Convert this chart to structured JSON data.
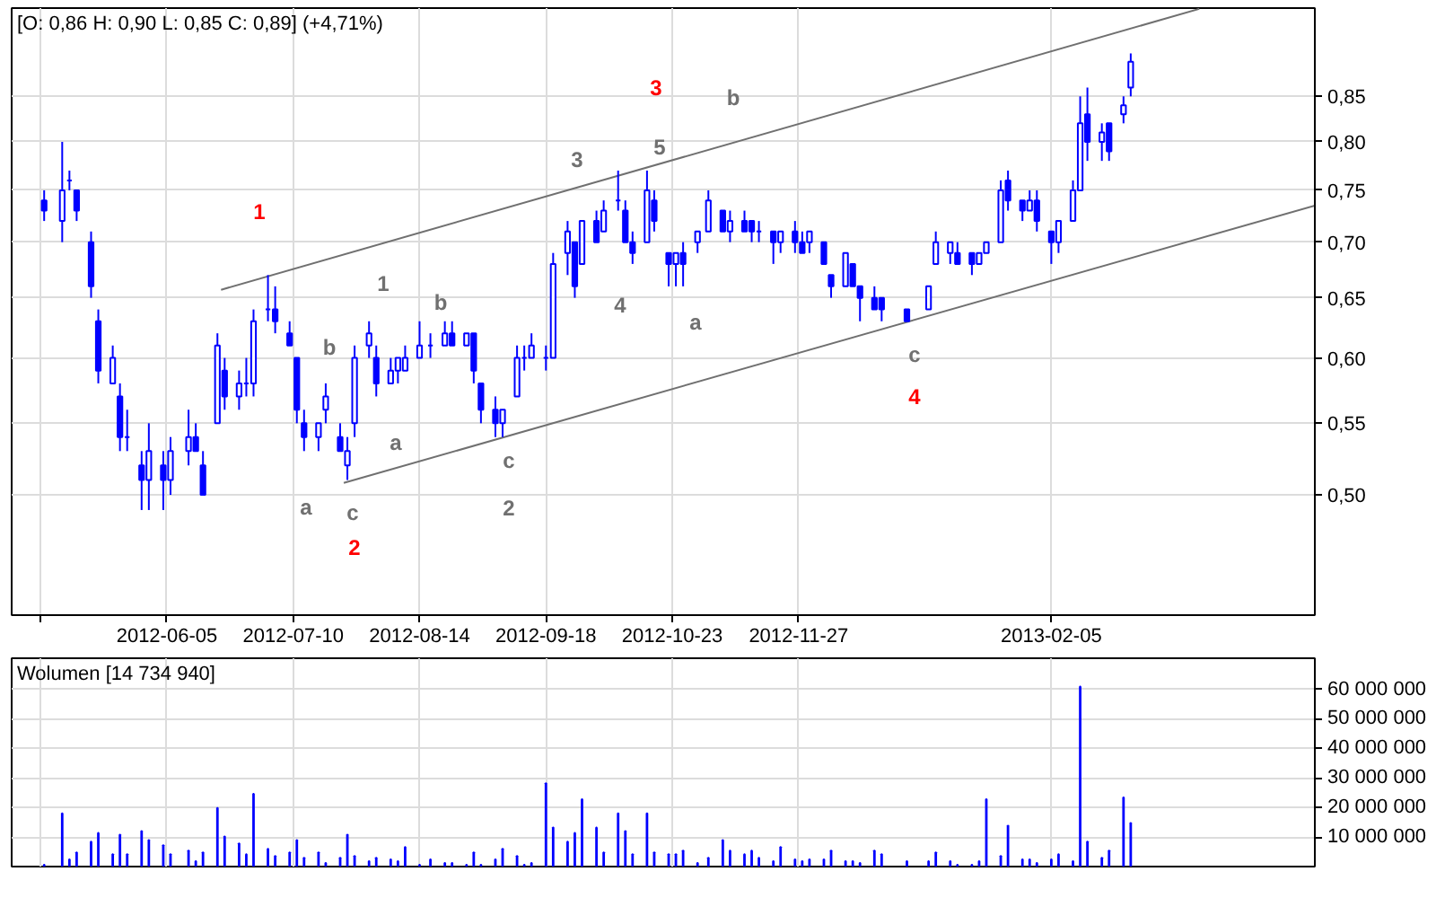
{
  "chart_data": [
    {
      "type": "candlestick",
      "title": "[O: 0,86 H: 0,90 L: 0,85 C: 0,89] (+4,71%)",
      "color": "#0000ff",
      "x": [
        "2012-05-02",
        "2012-05-07",
        "2012-05-09",
        "2012-05-11",
        "2012-05-15",
        "2012-05-17",
        "2012-05-21",
        "2012-05-23",
        "2012-05-25",
        "2012-05-29",
        "2012-05-31",
        "2012-06-04",
        "2012-06-06",
        "2012-06-11",
        "2012-06-13",
        "2012-06-15",
        "2012-06-19",
        "2012-06-21",
        "2012-06-25",
        "2012-06-27",
        "2012-06-29",
        "2012-07-03",
        "2012-07-05",
        "2012-07-09",
        "2012-07-11",
        "2012-07-13",
        "2012-07-17",
        "2012-07-19",
        "2012-07-23",
        "2012-07-25",
        "2012-07-27",
        "2012-07-31",
        "2012-08-02",
        "2012-08-06",
        "2012-08-08",
        "2012-08-10",
        "2012-08-14",
        "2012-08-17",
        "2012-08-21",
        "2012-08-23",
        "2012-08-27",
        "2012-08-29",
        "2012-08-31",
        "2012-09-04",
        "2012-09-06",
        "2012-09-10",
        "2012-09-12",
        "2012-09-14",
        "2012-09-18",
        "2012-09-20",
        "2012-09-24",
        "2012-09-26",
        "2012-09-28",
        "2012-10-02",
        "2012-10-04",
        "2012-10-08",
        "2012-10-10",
        "2012-10-12",
        "2012-10-16",
        "2012-10-18",
        "2012-10-22",
        "2012-10-24",
        "2012-10-26",
        "2012-10-30",
        "2012-11-02",
        "2012-11-06",
        "2012-11-08",
        "2012-11-12",
        "2012-11-14",
        "2012-11-16",
        "2012-11-20",
        "2012-11-22",
        "2012-11-26",
        "2012-11-28",
        "2012-11-30",
        "2012-12-04",
        "2012-12-06",
        "2012-12-10",
        "2012-12-12",
        "2012-12-14",
        "2012-12-18",
        "2012-12-20",
        "2012-12-27",
        "2013-01-02",
        "2013-01-04",
        "2013-01-08",
        "2013-01-10",
        "2013-01-14",
        "2013-01-16",
        "2013-01-18",
        "2013-01-22",
        "2013-01-24",
        "2013-01-28",
        "2013-01-30",
        "2013-02-01",
        "2013-02-05",
        "2013-02-07",
        "2013-02-11",
        "2013-02-13",
        "2013-02-15",
        "2013-02-19",
        "2013-02-21",
        "2013-02-25",
        "2013-02-27"
      ],
      "ohlc": [
        [
          0.74,
          0.75,
          0.72,
          0.73
        ],
        [
          0.72,
          0.8,
          0.7,
          0.75
        ],
        [
          0.76,
          0.77,
          0.75,
          0.76
        ],
        [
          0.75,
          0.75,
          0.72,
          0.73
        ],
        [
          0.7,
          0.71,
          0.65,
          0.66
        ],
        [
          0.63,
          0.64,
          0.58,
          0.59
        ],
        [
          0.58,
          0.61,
          0.58,
          0.6
        ],
        [
          0.57,
          0.58,
          0.53,
          0.54
        ],
        [
          0.54,
          0.56,
          0.53,
          0.54
        ],
        [
          0.52,
          0.53,
          0.49,
          0.51
        ],
        [
          0.51,
          0.55,
          0.49,
          0.53
        ],
        [
          0.52,
          0.53,
          0.49,
          0.51
        ],
        [
          0.51,
          0.54,
          0.5,
          0.53
        ],
        [
          0.53,
          0.56,
          0.52,
          0.54
        ],
        [
          0.54,
          0.55,
          0.53,
          0.53
        ],
        [
          0.52,
          0.53,
          0.5,
          0.5
        ],
        [
          0.55,
          0.62,
          0.55,
          0.61
        ],
        [
          0.59,
          0.6,
          0.56,
          0.57
        ],
        [
          0.57,
          0.59,
          0.56,
          0.58
        ],
        [
          0.58,
          0.6,
          0.57,
          0.58
        ],
        [
          0.58,
          0.64,
          0.57,
          0.63
        ],
        [
          0.64,
          0.67,
          0.63,
          0.64
        ],
        [
          0.64,
          0.66,
          0.62,
          0.63
        ],
        [
          0.62,
          0.63,
          0.61,
          0.61
        ],
        [
          0.6,
          0.6,
          0.55,
          0.56
        ],
        [
          0.55,
          0.56,
          0.53,
          0.54
        ],
        [
          0.54,
          0.55,
          0.53,
          0.55
        ],
        [
          0.56,
          0.58,
          0.55,
          0.57
        ],
        [
          0.54,
          0.55,
          0.53,
          0.53
        ],
        [
          0.52,
          0.54,
          0.51,
          0.53
        ],
        [
          0.55,
          0.61,
          0.54,
          0.6
        ],
        [
          0.61,
          0.63,
          0.6,
          0.62
        ],
        [
          0.6,
          0.61,
          0.57,
          0.58
        ],
        [
          0.58,
          0.6,
          0.58,
          0.59
        ],
        [
          0.59,
          0.6,
          0.58,
          0.6
        ],
        [
          0.59,
          0.61,
          0.59,
          0.6
        ],
        [
          0.6,
          0.63,
          0.6,
          0.61
        ],
        [
          0.61,
          0.62,
          0.6,
          0.61
        ],
        [
          0.61,
          0.63,
          0.61,
          0.62
        ],
        [
          0.62,
          0.63,
          0.61,
          0.61
        ],
        [
          0.61,
          0.62,
          0.61,
          0.62
        ],
        [
          0.62,
          0.62,
          0.58,
          0.59
        ],
        [
          0.58,
          0.58,
          0.55,
          0.56
        ],
        [
          0.56,
          0.57,
          0.54,
          0.55
        ],
        [
          0.55,
          0.56,
          0.54,
          0.56
        ],
        [
          0.57,
          0.61,
          0.57,
          0.6
        ],
        [
          0.6,
          0.61,
          0.59,
          0.6
        ],
        [
          0.6,
          0.62,
          0.6,
          0.61
        ],
        [
          0.6,
          0.61,
          0.59,
          0.6
        ],
        [
          0.6,
          0.69,
          0.6,
          0.68
        ],
        [
          0.69,
          0.72,
          0.67,
          0.71
        ],
        [
          0.7,
          0.7,
          0.65,
          0.66
        ],
        [
          0.68,
          0.72,
          0.68,
          0.72
        ],
        [
          0.72,
          0.73,
          0.7,
          0.7
        ],
        [
          0.71,
          0.74,
          0.71,
          0.73
        ],
        [
          0.74,
          0.77,
          0.73,
          0.74
        ],
        [
          0.73,
          0.74,
          0.7,
          0.7
        ],
        [
          0.7,
          0.71,
          0.68,
          0.69
        ],
        [
          0.7,
          0.77,
          0.7,
          0.75
        ],
        [
          0.74,
          0.75,
          0.71,
          0.72
        ],
        [
          0.69,
          0.69,
          0.66,
          0.68
        ],
        [
          0.68,
          0.69,
          0.66,
          0.69
        ],
        [
          0.69,
          0.7,
          0.66,
          0.68
        ],
        [
          0.7,
          0.71,
          0.69,
          0.71
        ],
        [
          0.71,
          0.75,
          0.71,
          0.74
        ],
        [
          0.73,
          0.73,
          0.71,
          0.71
        ],
        [
          0.71,
          0.73,
          0.7,
          0.72
        ],
        [
          0.72,
          0.73,
          0.71,
          0.71
        ],
        [
          0.72,
          0.72,
          0.7,
          0.71
        ],
        [
          0.71,
          0.72,
          0.7,
          0.71
        ],
        [
          0.71,
          0.71,
          0.68,
          0.7
        ],
        [
          0.7,
          0.71,
          0.69,
          0.71
        ],
        [
          0.71,
          0.72,
          0.69,
          0.7
        ],
        [
          0.7,
          0.71,
          0.69,
          0.69
        ],
        [
          0.7,
          0.71,
          0.69,
          0.71
        ],
        [
          0.7,
          0.7,
          0.68,
          0.68
        ],
        [
          0.67,
          0.67,
          0.65,
          0.66
        ],
        [
          0.66,
          0.69,
          0.66,
          0.69
        ],
        [
          0.68,
          0.68,
          0.66,
          0.66
        ],
        [
          0.66,
          0.66,
          0.63,
          0.65
        ],
        [
          0.65,
          0.66,
          0.64,
          0.64
        ],
        [
          0.65,
          0.65,
          0.63,
          0.64
        ],
        [
          0.64,
          0.64,
          0.63,
          0.63
        ],
        [
          0.64,
          0.66,
          0.64,
          0.66
        ],
        [
          0.68,
          0.71,
          0.68,
          0.7
        ],
        [
          0.69,
          0.7,
          0.68,
          0.7
        ],
        [
          0.69,
          0.7,
          0.68,
          0.68
        ],
        [
          0.69,
          0.69,
          0.67,
          0.68
        ],
        [
          0.68,
          0.69,
          0.68,
          0.69
        ],
        [
          0.69,
          0.7,
          0.69,
          0.7
        ],
        [
          0.7,
          0.76,
          0.7,
          0.75
        ],
        [
          0.76,
          0.77,
          0.73,
          0.74
        ],
        [
          0.74,
          0.74,
          0.72,
          0.73
        ],
        [
          0.73,
          0.75,
          0.73,
          0.74
        ],
        [
          0.74,
          0.75,
          0.71,
          0.72
        ],
        [
          0.71,
          0.71,
          0.68,
          0.7
        ],
        [
          0.7,
          0.72,
          0.69,
          0.72
        ],
        [
          0.72,
          0.76,
          0.72,
          0.75
        ],
        [
          0.75,
          0.85,
          0.75,
          0.82
        ],
        [
          0.83,
          0.86,
          0.78,
          0.8
        ],
        [
          0.8,
          0.82,
          0.78,
          0.81
        ],
        [
          0.82,
          0.82,
          0.78,
          0.79
        ],
        [
          0.83,
          0.85,
          0.82,
          0.84
        ],
        [
          0.86,
          0.9,
          0.85,
          0.89
        ]
      ],
      "series": [
        {
          "type": "line",
          "x": [
            "2012-06-20",
            "2013-03-18"
          ],
          "values": [
            0.657,
            0.955
          ],
          "color": "#707070"
        },
        {
          "type": "line",
          "x": [
            "2012-07-24",
            "2013-04-19"
          ],
          "values": [
            0.508,
            0.735
          ],
          "color": "#707070"
        }
      ],
      "annotations": [
        "1",
        "2",
        "3",
        "4",
        "a",
        "b",
        "c",
        "1",
        "a",
        "b",
        "c",
        "2",
        "3",
        "4",
        "5",
        "a",
        "b",
        "c"
      ],
      "xlim": [
        "2012-04-23",
        "2013-04-19"
      ],
      "xticks": [
        {
          "value": "2012-05-01",
          "label": null
        },
        "2012-06-05",
        "2012-07-10",
        "2012-08-14",
        "2012-09-18",
        "2012-10-23",
        "2012-11-27",
        "2013-02-05"
      ],
      "ylim": [
        0.426,
        0.956
      ],
      "yticks": [
        {
          "value": 0.5,
          "label": "0,50"
        },
        {
          "value": 0.55,
          "label": "0,55"
        },
        {
          "value": 0.6,
          "label": "0,60"
        },
        {
          "value": 0.65,
          "label": "0,65"
        },
        {
          "value": 0.7,
          "label": "0,70"
        },
        {
          "value": 0.75,
          "label": "0,75"
        },
        {
          "value": 0.8,
          "label": "0,80"
        },
        {
          "value": 0.85,
          "label": "0,85"
        }
      ],
      "log": true,
      "grid": true
    },
    {
      "type": "bar",
      "title": "Wolumen [14 734 940]",
      "color": "#0000ff",
      "x": [
        "2012-05-02",
        "2012-05-07",
        "2012-05-09",
        "2012-05-11",
        "2012-05-15",
        "2012-05-17",
        "2012-05-21",
        "2012-05-23",
        "2012-05-25",
        "2012-05-29",
        "2012-05-31",
        "2012-06-04",
        "2012-06-06",
        "2012-06-11",
        "2012-06-13",
        "2012-06-15",
        "2012-06-19",
        "2012-06-21",
        "2012-06-25",
        "2012-06-27",
        "2012-06-29",
        "2012-07-03",
        "2012-07-05",
        "2012-07-09",
        "2012-07-11",
        "2012-07-13",
        "2012-07-17",
        "2012-07-19",
        "2012-07-23",
        "2012-07-25",
        "2012-07-27",
        "2012-07-31",
        "2012-08-02",
        "2012-08-06",
        "2012-08-08",
        "2012-08-10",
        "2012-08-14",
        "2012-08-17",
        "2012-08-21",
        "2012-08-23",
        "2012-08-27",
        "2012-08-29",
        "2012-08-31",
        "2012-09-04",
        "2012-09-06",
        "2012-09-10",
        "2012-09-12",
        "2012-09-14",
        "2012-09-18",
        "2012-09-20",
        "2012-09-24",
        "2012-09-26",
        "2012-09-28",
        "2012-10-02",
        "2012-10-04",
        "2012-10-08",
        "2012-10-10",
        "2012-10-12",
        "2012-10-16",
        "2012-10-18",
        "2012-10-22",
        "2012-10-24",
        "2012-10-26",
        "2012-10-30",
        "2012-11-02",
        "2012-11-06",
        "2012-11-08",
        "2012-11-12",
        "2012-11-14",
        "2012-11-16",
        "2012-11-20",
        "2012-11-22",
        "2012-11-26",
        "2012-11-28",
        "2012-11-30",
        "2012-12-04",
        "2012-12-06",
        "2012-12-10",
        "2012-12-12",
        "2012-12-14",
        "2012-12-18",
        "2012-12-20",
        "2012-12-27",
        "2013-01-02",
        "2013-01-04",
        "2013-01-08",
        "2013-01-10",
        "2013-01-14",
        "2013-01-16",
        "2013-01-18",
        "2013-01-22",
        "2013-01-24",
        "2013-01-28",
        "2013-01-30",
        "2013-02-01",
        "2013-02-05",
        "2013-02-07",
        "2013-02-11",
        "2013-02-13",
        "2013-02-15",
        "2013-02-19",
        "2013-02-21",
        "2013-02-25",
        "2013-02-27"
      ],
      "values": [
        600000,
        18000000,
        2400000,
        4800000,
        8400000,
        11400000,
        4200000,
        10800000,
        4200000,
        12000000,
        9000000,
        7200000,
        4200000,
        5400000,
        1800000,
        4800000,
        19800000,
        10200000,
        7800000,
        4200000,
        24600000,
        6000000,
        3600000,
        4800000,
        9000000,
        3000000,
        4800000,
        1200000,
        3000000,
        10800000,
        3600000,
        1800000,
        3000000,
        2400000,
        1800000,
        6600000,
        600000,
        2400000,
        1200000,
        1200000,
        600000,
        4800000,
        600000,
        2400000,
        6000000,
        3600000,
        600000,
        1200000,
        28200000,
        13200000,
        8400000,
        11400000,
        22800000,
        13200000,
        4800000,
        18000000,
        12000000,
        4200000,
        18000000,
        4800000,
        4200000,
        4200000,
        5400000,
        1200000,
        3000000,
        9000000,
        5400000,
        4200000,
        5400000,
        3000000,
        1800000,
        6600000,
        2400000,
        1800000,
        2400000,
        2400000,
        5400000,
        1800000,
        1800000,
        1200000,
        5400000,
        4200000,
        1800000,
        1800000,
        4800000,
        1800000,
        600000,
        600000,
        1800000,
        22800000,
        3600000,
        13800000,
        2400000,
        2400000,
        1200000,
        2400000,
        4200000,
        1800000,
        60900000,
        8400000,
        3000000,
        5400000,
        23400000,
        14734940
      ],
      "xlim": [
        "2012-04-23",
        "2013-04-19"
      ],
      "xticks": [
        {
          "value": "2012-05-01",
          "label": null
        },
        "2012-06-05",
        "2012-07-10",
        "2012-08-14",
        "2012-09-18",
        "2012-10-23",
        "2012-11-27",
        "2013-02-05"
      ],
      "ylim": [
        0,
        70500000
      ],
      "yticks": [
        {
          "value": 10000000,
          "label": "10 000 000"
        },
        {
          "value": 20000000,
          "label": "20 000 000"
        },
        {
          "value": 30000000,
          "label": "30 000 000"
        },
        {
          "value": 40000000,
          "label": "40 000 000"
        },
        {
          "value": 50000000,
          "label": "50 000 000"
        },
        {
          "value": 60000000,
          "label": "60 000 000"
        }
      ],
      "grid": true,
      "tick_labels": "y"
    }
  ]
}
